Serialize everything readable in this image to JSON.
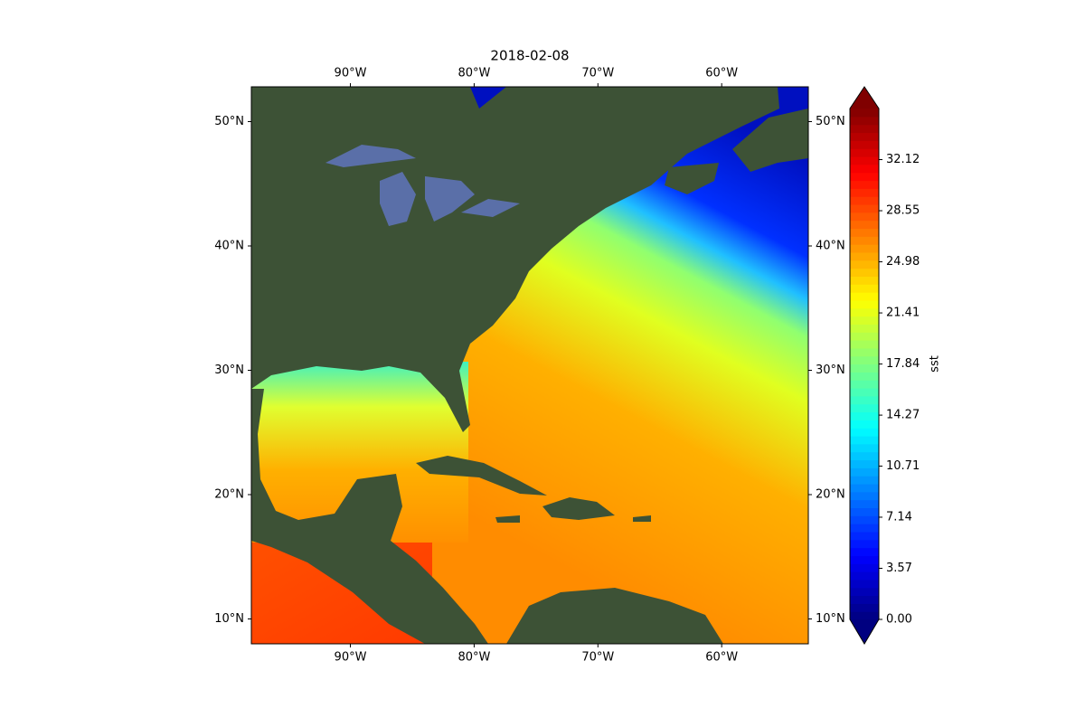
{
  "map": {
    "title": "2018-02-08",
    "xlim": [
      -98,
      -53
    ],
    "ylim": [
      8,
      52.8
    ],
    "xticks": [
      {
        "value": -90,
        "label": "90°W"
      },
      {
        "value": -80,
        "label": "80°W"
      },
      {
        "value": -70,
        "label": "70°W"
      },
      {
        "value": -60,
        "label": "60°W"
      }
    ],
    "yticks": [
      {
        "value": 10,
        "label": "10°N"
      },
      {
        "value": 20,
        "label": "20°N"
      },
      {
        "value": 30,
        "label": "30°N"
      },
      {
        "value": 40,
        "label": "40°N"
      },
      {
        "value": 50,
        "label": "50°N"
      }
    ],
    "colorbar": {
      "label": "sst",
      "colormap": "jet",
      "lim": [
        0,
        35.69
      ],
      "ticks": [
        {
          "value": 0,
          "label": "0.00"
        },
        3.57,
        7.14,
        10.71,
        14.27,
        17.84,
        21.41,
        24.98,
        28.55,
        32.12
      ]
    }
  }
}
